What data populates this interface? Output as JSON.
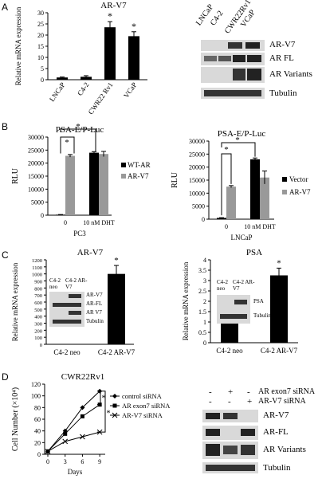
{
  "panels": {
    "A": {
      "letter": "A",
      "title": "AR-V7",
      "ylabel": "Relative mRNA expression",
      "yticks": [
        "0",
        "5",
        "10",
        "15",
        "20",
        "25",
        "30"
      ],
      "categories": [
        "LNCaP",
        "C4-2",
        "CWR22 Rv1",
        "VCaP"
      ],
      "blot_lanes": [
        "LNCaP",
        "C4-2",
        "CWR22Rv1",
        "VCaP"
      ],
      "blot_bands": [
        "AR-V7",
        "AR FL",
        "AR Variants",
        "Tubulin"
      ]
    },
    "B": {
      "letter": "B",
      "left": {
        "title": "PSA-E/P-Luc",
        "ylabel": "RLU",
        "yticks": [
          "0",
          "5000",
          "10000",
          "15000",
          "20000",
          "25000",
          "30000"
        ],
        "groups": [
          "0",
          "10 nM DHT"
        ],
        "cell_line": "PC3",
        "legend": [
          "WT-AR",
          "AR-V7"
        ]
      },
      "right": {
        "title": "PSA-E/P-Luc",
        "ylabel": "RLU",
        "yticks": [
          "0",
          "5000",
          "10000",
          "15000",
          "20000",
          "25000",
          "30000"
        ],
        "groups": [
          "0",
          "10 nM DHT"
        ],
        "cell_line": "LNCaP",
        "legend": [
          "Vector",
          "AR-V7"
        ]
      }
    },
    "C": {
      "letter": "C",
      "left": {
        "title": "AR-V7",
        "ylabel": "Relative mRNA expression",
        "yticks": [
          "0",
          "100",
          "200",
          "300",
          "400",
          "500",
          "600",
          "700",
          "800",
          "900",
          "1000",
          "1100",
          "1200"
        ],
        "categories": [
          "C4-2 neo",
          "C4-2 AR-V7"
        ],
        "inset_lanes": [
          "C4-2 neo",
          "C4-2 AR-V7"
        ],
        "inset_bands": [
          "AR-V7",
          "AR-FL",
          "AR V7",
          "Tubulin"
        ]
      },
      "right": {
        "title": "PSA",
        "ylabel": "Relative mRNA expression",
        "yticks": [
          "0",
          "0.5",
          "1",
          "1.5",
          "2",
          "2.5",
          "3",
          "3.5",
          "4"
        ],
        "categories": [
          "C4-2 neo",
          "C4-2 AR-V7"
        ],
        "inset_lanes": [
          "C4-2 neo",
          "C4-2 AR-V7"
        ],
        "inset_bands": [
          "PSA",
          "Tubulin"
        ]
      }
    },
    "D": {
      "letter": "D",
      "title": "CWR22Rv1",
      "ylabel": "Cell Number (×10⁴)",
      "xlabel": "Days",
      "yticks": [
        "0",
        "20",
        "40",
        "60",
        "80",
        "100",
        "120"
      ],
      "xticks": [
        "0",
        "3",
        "6",
        "9"
      ],
      "legend": [
        "control siRNA",
        "AR exon7 siRNA",
        "AR-V7 siRNA"
      ],
      "blot_row1_label": "AR exon7 siRNA",
      "blot_row2_label": "AR-V7 siRNA",
      "blot_row1_signs": [
        "-",
        "+",
        "-"
      ],
      "blot_row2_signs": [
        "-",
        "-",
        "+"
      ],
      "blot_bands": [
        "AR-V7",
        "AR-FL",
        "AR Variants",
        "Tubulin"
      ]
    }
  },
  "significance_mark": "*",
  "chart_data": [
    {
      "type": "bar",
      "title": "AR-V7",
      "ylabel": "Relative mRNA expression",
      "categories": [
        "LNCaP",
        "C4-2",
        "CWR22 Rv1",
        "VCaP"
      ],
      "values": [
        1,
        1.3,
        23.5,
        19.5
      ],
      "errors": [
        0.2,
        0.5,
        2.5,
        2
      ],
      "ylim": [
        0,
        30
      ]
    },
    {
      "type": "bar",
      "title": "PSA-E/P-Luc",
      "ylabel": "RLU",
      "categories": [
        "0",
        "10 nM DHT"
      ],
      "series": [
        {
          "name": "WT-AR",
          "values": [
            200,
            24000
          ],
          "errors": [
            50,
            400
          ]
        },
        {
          "name": "AR-V7",
          "values": [
            22800,
            23500
          ],
          "errors": [
            500,
            1000
          ]
        }
      ],
      "ylim": [
        0,
        30000
      ],
      "xlabel": "PC3"
    },
    {
      "type": "bar",
      "title": "PSA-E/P-Luc",
      "ylabel": "RLU",
      "categories": [
        "0",
        "10 nM DHT"
      ],
      "series": [
        {
          "name": "Vector",
          "values": [
            500,
            23000
          ],
          "errors": [
            80,
            500
          ]
        },
        {
          "name": "AR-V7",
          "values": [
            12500,
            16000
          ],
          "errors": [
            400,
            2500
          ]
        }
      ],
      "ylim": [
        0,
        30000
      ],
      "xlabel": "LNCaP"
    },
    {
      "type": "bar",
      "title": "AR-V7",
      "ylabel": "Relative mRNA expression",
      "categories": [
        "C4-2 neo",
        "C4-2 AR-V7"
      ],
      "values": [
        0,
        1000
      ],
      "errors": [
        0,
        120
      ],
      "ylim": [
        0,
        1200
      ]
    },
    {
      "type": "bar",
      "title": "PSA",
      "ylabel": "Relative mRNA expression",
      "categories": [
        "C4-2 neo",
        "C4-2 AR-V7"
      ],
      "values": [
        1,
        3.25
      ],
      "errors": [
        0,
        0.35
      ],
      "ylim": [
        0,
        4
      ]
    },
    {
      "type": "line",
      "title": "CWR22Rv1",
      "xlabel": "Days",
      "ylabel": "Cell Number (×10⁴)",
      "x": [
        0,
        3,
        6,
        9
      ],
      "series": [
        {
          "name": "control siRNA",
          "values": [
            5,
            40,
            80,
            108
          ]
        },
        {
          "name": "AR exon7 siRNA",
          "values": [
            5,
            35,
            65,
            85
          ]
        },
        {
          "name": "AR-V7 siRNA",
          "values": [
            5,
            22,
            30,
            38
          ]
        }
      ],
      "ylim": [
        0,
        120
      ]
    }
  ]
}
